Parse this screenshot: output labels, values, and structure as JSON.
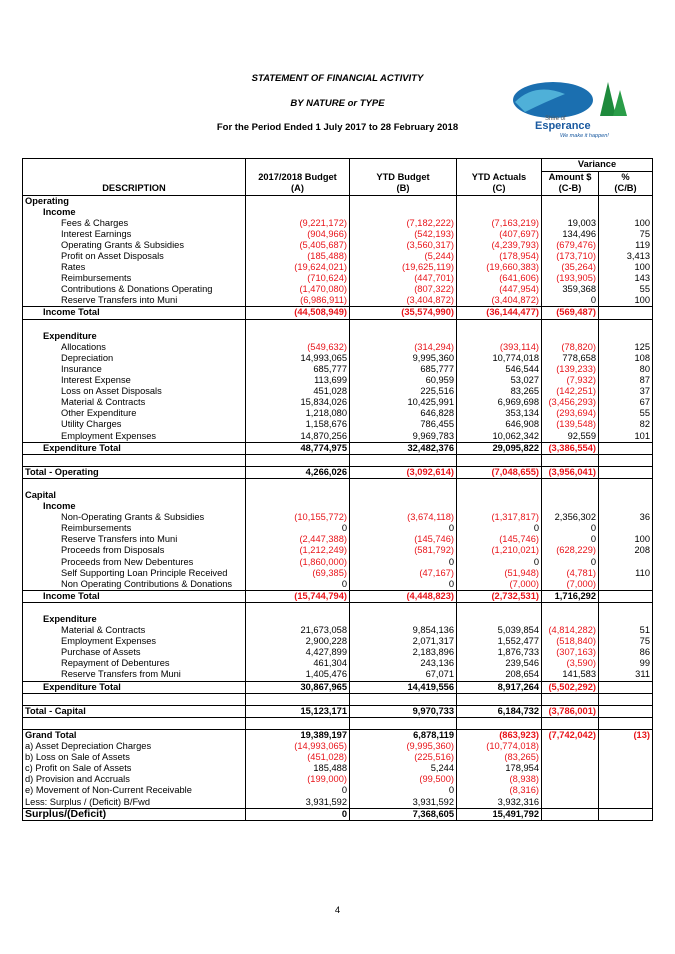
{
  "header": {
    "title": "STATEMENT OF FINANCIAL ACTIVITY",
    "subtitle": "BY NATURE or TYPE",
    "period": "For the Period Ended 1 July 2017 to 28 February 2018"
  },
  "logo": {
    "line1": "Shire of",
    "line2": "Esperance",
    "tagline": "We make it happen!"
  },
  "table": {
    "variance": "Variance",
    "columns": [
      [
        "DESCRIPTION"
      ],
      [
        "2017/2018 Budget",
        "(A)"
      ],
      [
        "YTD Budget",
        "(B)"
      ],
      [
        "YTD Actuals",
        "(C)"
      ],
      [
        "Amount $",
        "(C-B)"
      ],
      [
        "%",
        "(C/B)"
      ]
    ],
    "sections": [
      {
        "title": "Operating",
        "groups": [
          {
            "title": "Income",
            "rows": [
              [
                "Fees & Charges",
                "(9,221,172)",
                "(7,182,222)",
                "(7,163,219)",
                "19,003",
                "100"
              ],
              [
                "Interest Earnings",
                "(904,966)",
                "(542,193)",
                "(407,697)",
                "134,496",
                "75"
              ],
              [
                "Operating Grants & Subsidies",
                "(5,405,687)",
                "(3,560,317)",
                "(4,239,793)",
                "(679,476)",
                "119"
              ],
              [
                "Profit on Asset Disposals",
                "(185,488)",
                "(5,244)",
                "(178,954)",
                "(173,710)",
                "3,413"
              ],
              [
                "Rates",
                "(19,624,021)",
                "(19,625,119)",
                "(19,660,383)",
                "(35,264)",
                "100"
              ],
              [
                "Reimbursements",
                "(710,624)",
                "(447,701)",
                "(641,606)",
                "(193,905)",
                "143"
              ],
              [
                "Contributions & Donations Operating",
                "(1,470,080)",
                "(807,322)",
                "(447,954)",
                "359,368",
                "55"
              ],
              [
                "Reserve Transfers into Muni",
                "(6,986,911)",
                "(3,404,872)",
                "(3,404,872)",
                "0",
                "100"
              ]
            ],
            "total": [
              "Income Total",
              "(44,508,949)",
              "(35,574,990)",
              "(36,144,477)",
              "(569,487)"
            ]
          },
          {
            "title": "Expenditure",
            "rows": [
              [
                "Allocations",
                "(549,632)",
                "(314,294)",
                "(393,114)",
                "(78,820)",
                "125"
              ],
              [
                "Depreciation",
                "14,993,065",
                "9,995,360",
                "10,774,018",
                "778,658",
                "108"
              ],
              [
                "Insurance",
                "685,777",
                "685,777",
                "546,544",
                "(139,233)",
                "80"
              ],
              [
                "Interest Expense",
                "113,699",
                "60,959",
                "53,027",
                "(7,932)",
                "87"
              ],
              [
                "Loss on Asset Disposals",
                "451,028",
                "225,516",
                "83,265",
                "(142,251)",
                "37"
              ],
              [
                "Material & Contracts",
                "15,834,026",
                "10,425,991",
                "6,969,698",
                "(3,456,293)",
                "67"
              ],
              [
                "Other Expenditure",
                "1,218,080",
                "646,828",
                "353,134",
                "(293,694)",
                "55"
              ],
              [
                "Utility Charges",
                "1,158,676",
                "786,455",
                "646,908",
                "(139,548)",
                "82"
              ],
              [
                "Employment Expenses",
                "14,870,256",
                "9,969,783",
                "10,062,342",
                "92,559",
                "101"
              ]
            ],
            "total": [
              "Expenditure Total",
              "48,774,975",
              "32,482,376",
              "29,095,822",
              "(3,386,554)"
            ]
          }
        ],
        "total": [
          "Total - Operating",
          "4,266,026",
          "(3,092,614)",
          "(7,048,655)",
          "(3,956,041)"
        ]
      },
      {
        "title": "Capital",
        "groups": [
          {
            "title": "Income",
            "rows": [
              [
                "Non-Operating Grants & Subsidies",
                "(10,155,772)",
                "(3,674,118)",
                "(1,317,817)",
                "2,356,302",
                "36"
              ],
              [
                "Reimbursements",
                "0",
                "0",
                "0",
                "0"
              ],
              [
                "Reserve Transfers into Muni",
                "(2,447,388)",
                "(145,746)",
                "(145,746)",
                "0",
                "100"
              ],
              [
                "Proceeds from Disposals",
                "(1,212,249)",
                "(581,792)",
                "(1,210,021)",
                "(628,229)",
                "208"
              ],
              [
                "Proceeds from New Debentures",
                "(1,860,000)",
                "0",
                "0",
                "0"
              ],
              [
                "Self Supporting Loan Principle Received",
                "(69,385)",
                "(47,167)",
                "(51,948)",
                "(4,781)",
                "110"
              ],
              [
                "Non Operating Contributions & Donations",
                "0",
                "0",
                "(7,000)",
                "(7,000)"
              ]
            ],
            "total": [
              "Income Total",
              "(15,744,794)",
              "(4,448,823)",
              "(2,732,531)",
              "1,716,292"
            ]
          },
          {
            "title": "Expenditure",
            "rows": [
              [
                "Material & Contracts",
                "21,673,058",
                "9,854,136",
                "5,039,854",
                "(4,814,282)",
                "51"
              ],
              [
                "Employment Expenses",
                "2,900,228",
                "2,071,317",
                "1,552,477",
                "(518,840)",
                "75"
              ],
              [
                "Purchase of Assets",
                "4,427,899",
                "2,183,896",
                "1,876,733",
                "(307,163)",
                "86"
              ],
              [
                "Repayment of Debentures",
                "461,304",
                "243,136",
                "239,546",
                "(3,590)",
                "99"
              ],
              [
                "Reserve Transfers from Muni",
                "1,405,476",
                "67,071",
                "208,654",
                "141,583",
                "311"
              ]
            ],
            "total": [
              "Expenditure Total",
              "30,867,965",
              "14,419,556",
              "8,917,264",
              "(5,502,292)"
            ]
          }
        ],
        "total": [
          "Total - Capital",
          "15,123,171",
          "9,970,733",
          "6,184,732",
          "(3,786,001)"
        ]
      }
    ],
    "grand": [
      "Grand Total",
      "19,389,197",
      "6,878,119",
      "(863,923)",
      "(7,742,042)",
      "(13)"
    ],
    "adjustments": [
      [
        "a) Asset Depreciation Charges",
        "(14,993,065)",
        "(9,995,360)",
        "(10,774,018)"
      ],
      [
        "b) Loss on Sale of Assets",
        "(451,028)",
        "(225,516)",
        "(83,265)"
      ],
      [
        "c) Profit on Sale of Assets",
        "185,488",
        "5,244",
        "178,954"
      ],
      [
        "d) Provision and Accruals",
        "(199,000)",
        "(99,500)",
        "(8,938)"
      ],
      [
        "e) Movement of Non-Current Receivable",
        "0",
        "0",
        "(8,316)"
      ],
      [
        "Less: Surplus / (Deficit) B/Fwd",
        "3,931,592",
        "3,931,592",
        "3,932,316"
      ]
    ],
    "result": [
      "Surplus/(Deficit)",
      "0",
      "7,368,605",
      "15,491,792"
    ]
  },
  "page_number": "4"
}
